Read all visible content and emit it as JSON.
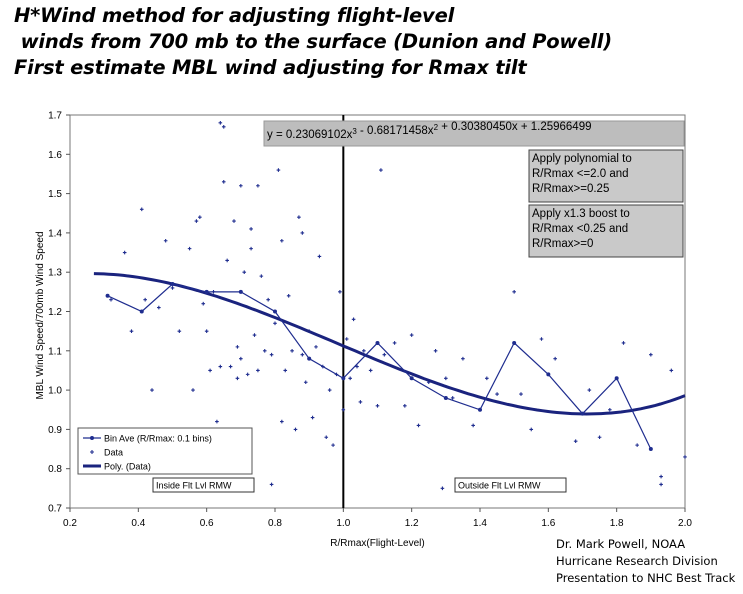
{
  "page": {
    "title_lines": [
      "H*Wind method for adjusting flight-level",
      " winds from 700 mb to the surface (Dunion and Powell)",
      "First estimate MBL wind adjusting for Rmax tilt"
    ],
    "credits": [
      "Dr. Mark Powell, NOAA",
      "Hurricane Research Division",
      "Presentation to NHC Best Track"
    ]
  },
  "chart_data": {
    "type": "scatter",
    "xlabel": "R/Rmax(Flight-Level)",
    "ylabel": "MBL Wind Speed/700mb Wind Speed",
    "xlim": [
      0.2,
      2.0
    ],
    "ylim": [
      0.7,
      1.7
    ],
    "x_ticks": [
      "0.2",
      "0.4",
      "0.6",
      "0.8",
      "1.0",
      "1.2",
      "1.4",
      "1.6",
      "1.8",
      "2.0"
    ],
    "y_ticks": [
      "0.7",
      "0.8",
      "0.9",
      "1.0",
      "1.1",
      "1.2",
      "1.3",
      "1.4",
      "1.5",
      "1.6",
      "1.7"
    ],
    "grid": false,
    "vertical_line_x": 1.0,
    "equation": "y = 0.23069102x³ - 0.68171458x² + 0.30380450x + 1.25966499",
    "polynomial_coefficients": [
      0.23069102,
      -0.68171458,
      0.3038045,
      1.25966499
    ],
    "polynomial_domain": [
      0.27,
      2.0
    ],
    "annotations": [
      "Apply polynomial to\nR/Rmax <=2.0 and\nR/Rmax>=0.25",
      "Apply x1.3 boost to\nR/Rmax <0.25 and\nR/Rmax>=0"
    ],
    "region_labels": [
      "Inside Flt Lvl RMW",
      "Outside Flt Lvl RMW"
    ],
    "legend": {
      "position": "bottom-left",
      "entries": [
        "Bin Ave (R/Rmax: 0.1 bins)",
        "Data",
        "Poly. (Data)"
      ]
    },
    "series": [
      {
        "name": "Bin Ave (R/Rmax: 0.1 bins)",
        "style": "line-markers",
        "color": "#1f2d8f",
        "x": [
          0.31,
          0.41,
          0.5,
          0.6,
          0.7,
          0.8,
          0.9,
          1.0,
          1.1,
          1.2,
          1.3,
          1.4,
          1.5,
          1.6,
          1.7,
          1.8,
          1.9
        ],
        "y": [
          1.24,
          1.2,
          1.27,
          1.25,
          1.25,
          1.2,
          1.08,
          1.03,
          1.12,
          1.03,
          0.98,
          0.95,
          1.12,
          1.04,
          0.94,
          1.03,
          0.85
        ]
      },
      {
        "name": "Data",
        "style": "markers",
        "color": "#1f2d8f",
        "x": [
          0.32,
          0.36,
          0.38,
          0.41,
          0.42,
          0.44,
          0.46,
          0.48,
          0.5,
          0.52,
          0.55,
          0.56,
          0.58,
          0.59,
          0.6,
          0.61,
          0.62,
          0.63,
          0.64,
          0.65,
          0.66,
          0.67,
          0.68,
          0.69,
          0.7,
          0.7,
          0.71,
          0.72,
          0.73,
          0.74,
          0.75,
          0.76,
          0.77,
          0.78,
          0.79,
          0.8,
          0.81,
          0.82,
          0.83,
          0.84,
          0.85,
          0.86,
          0.87,
          0.88,
          0.89,
          0.9,
          0.91,
          0.92,
          0.93,
          0.94,
          0.95,
          0.96,
          0.97,
          0.98,
          0.99,
          1.0,
          1.01,
          1.02,
          1.03,
          1.04,
          1.05,
          1.06,
          1.08,
          1.1,
          1.12,
          1.15,
          1.18,
          1.2,
          1.22,
          1.25,
          1.27,
          1.3,
          1.32,
          1.35,
          1.38,
          1.42,
          1.45,
          1.5,
          1.52,
          1.55,
          1.58,
          1.62,
          1.68,
          1.72,
          1.75,
          1.78,
          1.82,
          1.86,
          1.9,
          1.93,
          1.96,
          2.0,
          0.64,
          0.65,
          0.57,
          0.75,
          0.82,
          0.88,
          1.11,
          1.29,
          1.93,
          0.79,
          0.69,
          0.73
        ],
        "y": [
          1.23,
          1.35,
          1.15,
          1.46,
          1.23,
          1.0,
          1.21,
          1.38,
          1.26,
          1.15,
          1.36,
          1.0,
          1.44,
          1.22,
          1.15,
          1.05,
          1.25,
          0.92,
          1.06,
          1.53,
          1.33,
          1.06,
          1.43,
          1.11,
          1.52,
          1.08,
          1.3,
          1.04,
          1.36,
          1.14,
          1.05,
          1.29,
          1.1,
          1.23,
          1.09,
          1.17,
          1.56,
          1.38,
          1.05,
          1.24,
          1.1,
          0.9,
          1.44,
          1.09,
          1.02,
          1.15,
          0.93,
          1.11,
          1.34,
          1.06,
          0.88,
          1.0,
          0.86,
          1.04,
          1.25,
          0.95,
          1.13,
          1.03,
          1.18,
          1.06,
          0.97,
          1.1,
          1.05,
          0.96,
          1.09,
          1.12,
          0.96,
          1.14,
          0.91,
          1.02,
          1.1,
          1.03,
          0.98,
          1.08,
          0.91,
          1.03,
          0.99,
          1.25,
          0.99,
          0.9,
          1.13,
          1.08,
          0.87,
          1.0,
          0.88,
          0.95,
          1.12,
          0.86,
          1.09,
          0.78,
          1.05,
          0.83,
          1.68,
          1.67,
          1.43,
          1.52,
          0.92,
          1.4,
          1.56,
          0.75,
          0.76,
          0.76,
          1.03,
          1.41
        ]
      },
      {
        "name": "Poly. (Data)",
        "style": "line",
        "color": "#1a237e"
      }
    ]
  }
}
